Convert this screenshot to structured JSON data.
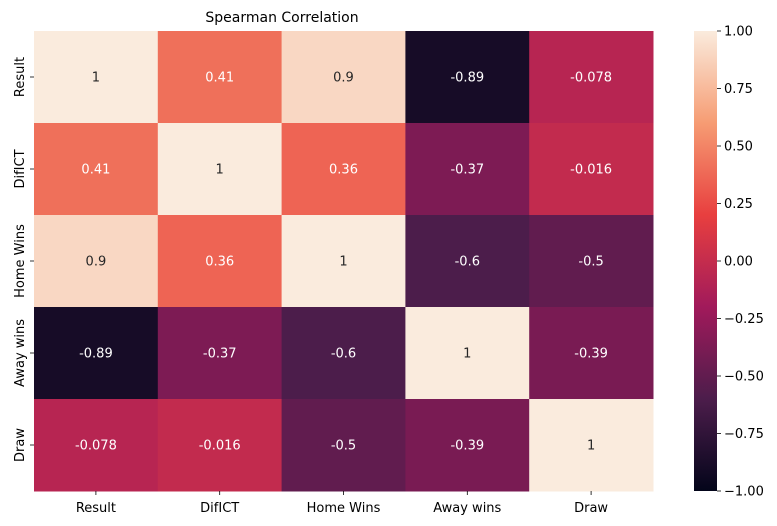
{
  "chart_data": {
    "type": "heatmap",
    "title": "Spearman Correlation",
    "xlabel": "",
    "ylabel": "",
    "x_categories": [
      "Result",
      "DifICT",
      "Home Wins",
      "Away wins",
      "Draw"
    ],
    "y_categories": [
      "Result",
      "DifICT",
      "Home Wins",
      "Away wins",
      "Draw"
    ],
    "values": [
      [
        1,
        0.41,
        0.9,
        -0.89,
        -0.078
      ],
      [
        0.41,
        1,
        0.36,
        -0.37,
        -0.016
      ],
      [
        0.9,
        0.36,
        1,
        -0.6,
        -0.5
      ],
      [
        -0.89,
        -0.37,
        -0.6,
        1,
        -0.39
      ],
      [
        -0.078,
        -0.016,
        -0.5,
        -0.39,
        1
      ]
    ],
    "cell_labels": [
      [
        "1",
        "0.41",
        "0.9",
        "-0.89",
        "-0.078"
      ],
      [
        "0.41",
        "1",
        "0.36",
        "-0.37",
        "-0.016"
      ],
      [
        "0.9",
        "0.36",
        "1",
        "-0.6",
        "-0.5"
      ],
      [
        "-0.89",
        "-0.37",
        "-0.6",
        "1",
        "-0.39"
      ],
      [
        "-0.078",
        "-0.016",
        "-0.5",
        "-0.39",
        "1"
      ]
    ],
    "colorbar": {
      "range": [
        -1,
        1
      ],
      "ticks": [
        1.0,
        0.75,
        0.5,
        0.25,
        0.0,
        -0.25,
        -0.5,
        -0.75,
        -1.0
      ],
      "tick_labels": [
        "1.00",
        "0.75",
        "0.50",
        "0.25",
        "0.00",
        "−0.25",
        "−0.50",
        "−0.75",
        "−1.00"
      ],
      "colormap": "rocket",
      "stops": [
        "#03051a",
        "#4c1d4b",
        "#a11a5b",
        "#e83f3f",
        "#f69c73",
        "#faebdd"
      ]
    }
  }
}
